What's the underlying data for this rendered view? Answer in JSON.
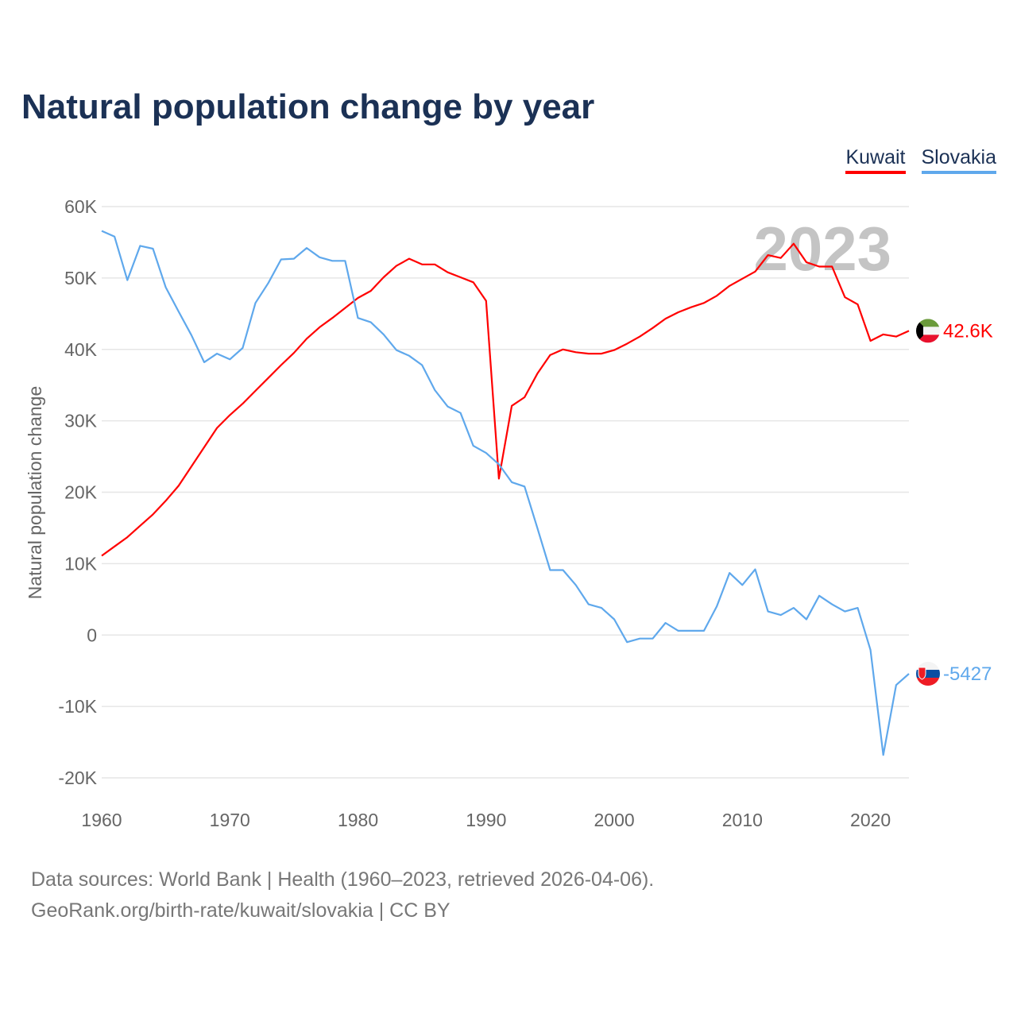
{
  "title": "Natural population change by year",
  "legend": [
    {
      "label": "Kuwait",
      "color": "#ff0000"
    },
    {
      "label": "Slovakia",
      "color": "#5fa8ec"
    }
  ],
  "year_watermark": "2023",
  "footer": {
    "line1": "Data sources: World Bank | Health (1960–2023, retrieved 2026-04-06).",
    "line2": "GeoRank.org/birth-rate/kuwait/slovakia | CC BY"
  },
  "chart_data": {
    "type": "line",
    "title": "Natural population change by year",
    "xlabel": "",
    "ylabel": "Natural population change",
    "xlim": [
      1960,
      2023
    ],
    "ylim": [
      -20000,
      60000
    ],
    "x_ticks": [
      1960,
      1970,
      1980,
      1990,
      2000,
      2010,
      2020
    ],
    "y_ticks": [
      {
        "value": 60000,
        "label": "60K"
      },
      {
        "value": 50000,
        "label": "50K"
      },
      {
        "value": 40000,
        "label": "40K"
      },
      {
        "value": 30000,
        "label": "30K"
      },
      {
        "value": 20000,
        "label": "20K"
      },
      {
        "value": 10000,
        "label": "10K"
      },
      {
        "value": 0,
        "label": "0"
      },
      {
        "value": -10000,
        "label": "-10K"
      },
      {
        "value": -20000,
        "label": "-20K"
      }
    ],
    "grid": true,
    "legend_position": "top-right",
    "x_start": 1960,
    "series": [
      {
        "name": "Kuwait",
        "color": "#ff0000",
        "end_label": "42.6K",
        "values": [
          11100,
          12400,
          13700,
          15300,
          16900,
          18800,
          20900,
          23600,
          26300,
          29000,
          30800,
          32400,
          34200,
          36000,
          37800,
          39500,
          41500,
          43100,
          44400,
          45800,
          47200,
          48200,
          50100,
          51700,
          52700,
          51900,
          51900,
          50800,
          50100,
          49400,
          46800,
          21900,
          32100,
          33300,
          36600,
          39200,
          40000,
          39600,
          39400,
          39400,
          39900,
          40800,
          41800,
          43000,
          44300,
          45200,
          45900,
          46500,
          47500,
          48900,
          49900,
          50900,
          53200,
          52800,
          54800,
          52200,
          51600,
          51600,
          47300,
          46300,
          41200,
          42100,
          41800,
          42600
        ]
      },
      {
        "name": "Slovakia",
        "color": "#5fa8ec",
        "end_label": "-5427",
        "values": [
          56600,
          55800,
          49700,
          54500,
          54100,
          48700,
          45300,
          42000,
          38200,
          39400,
          38600,
          40200,
          46500,
          49300,
          52600,
          52700,
          54200,
          52900,
          52400,
          52400,
          44400,
          43800,
          42100,
          39900,
          39100,
          37800,
          34300,
          32000,
          31100,
          26500,
          25500,
          23900,
          21400,
          20800,
          15000,
          9100,
          9100,
          7000,
          4300,
          3800,
          2200,
          -1000,
          -500,
          -500,
          1700,
          600,
          600,
          600,
          4000,
          8700,
          7000,
          9200,
          3300,
          2800,
          3800,
          2200,
          5500,
          4300,
          3300,
          3800,
          -2100,
          -16800,
          -7000,
          -5427
        ]
      }
    ]
  }
}
